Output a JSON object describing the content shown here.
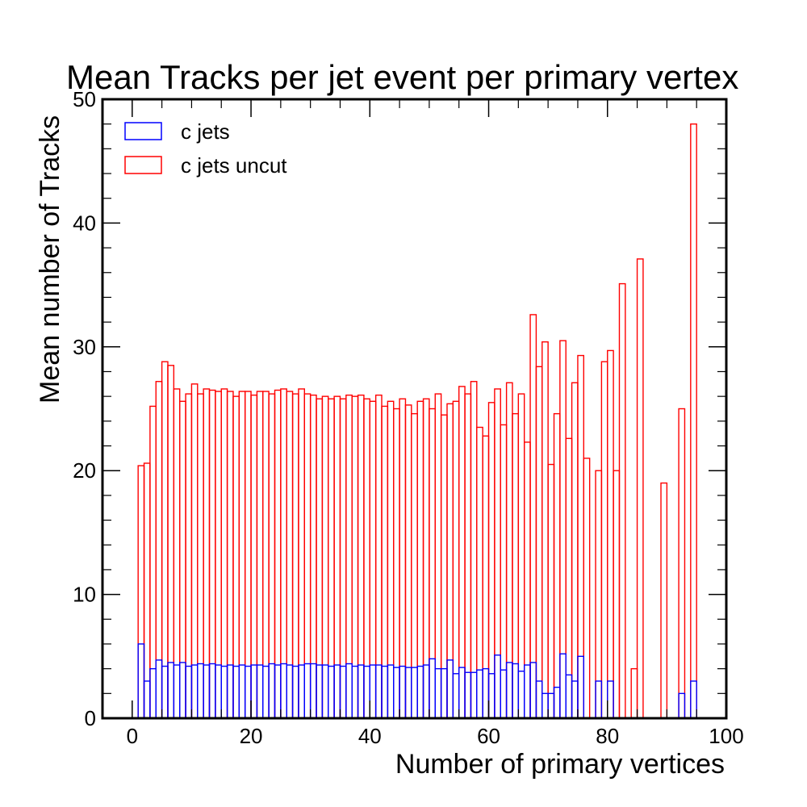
{
  "chart_data": {
    "type": "bar",
    "title": "Mean Tracks per jet event per primary vertex",
    "xlabel": "Number of primary vertices",
    "ylabel": "Mean number of Tracks",
    "xlim": [
      -5,
      100
    ],
    "ylim": [
      0,
      50
    ],
    "x_ticks": [
      0,
      20,
      40,
      60,
      80,
      100
    ],
    "y_ticks": [
      0,
      10,
      20,
      30,
      40,
      50
    ],
    "grid": false,
    "legend_position": "top-left",
    "histtype": "step",
    "bin_width": 1,
    "bin_start": 0,
    "series": [
      {
        "name": "c jets uncut",
        "color": "#ff0000",
        "values": [
          0,
          20.4,
          20.6,
          25.2,
          27.2,
          28.8,
          28.5,
          26.6,
          25.6,
          26.2,
          27.0,
          26.2,
          26.6,
          26.5,
          26.4,
          26.6,
          26.4,
          26.0,
          26.4,
          26.4,
          26.1,
          26.4,
          26.4,
          26.2,
          26.5,
          26.6,
          26.4,
          26.2,
          26.6,
          26.2,
          26.1,
          25.8,
          26.0,
          25.8,
          26.0,
          25.8,
          26.1,
          26.0,
          26.1,
          25.8,
          25.6,
          26.1,
          25.2,
          25.6,
          25.0,
          25.8,
          25.3,
          24.6,
          25.6,
          25.8,
          25.0,
          26.2,
          24.5,
          25.4,
          25.6,
          26.8,
          26.2,
          27.2,
          23.5,
          22.8,
          25.5,
          26.6,
          23.7,
          27.1,
          24.6,
          26.2,
          22.3,
          32.6,
          28.4,
          30.4,
          20.5,
          24.6,
          30.5,
          22.6,
          27.1,
          29.3,
          21.0,
          0,
          20.0,
          28.8,
          29.7,
          20.0,
          35.1,
          0,
          4.0,
          37.1,
          0,
          0,
          0,
          19.0,
          0,
          0,
          25.0,
          0,
          48.0,
          0,
          0,
          0,
          0,
          0
        ]
      },
      {
        "name": "c jets",
        "color": "#0000ff",
        "values": [
          0,
          6.0,
          3.0,
          4.0,
          4.7,
          4.2,
          4.5,
          4.3,
          4.5,
          4.2,
          4.3,
          4.4,
          4.3,
          4.4,
          4.3,
          4.2,
          4.3,
          4.2,
          4.3,
          4.2,
          4.3,
          4.3,
          4.2,
          4.4,
          4.3,
          4.4,
          4.3,
          4.2,
          4.3,
          4.4,
          4.4,
          4.3,
          4.3,
          4.2,
          4.3,
          4.2,
          4.4,
          4.2,
          4.3,
          4.2,
          4.3,
          4.3,
          4.2,
          4.3,
          4.1,
          4.2,
          4.1,
          4.1,
          4.2,
          4.3,
          4.8,
          4.0,
          4.0,
          4.7,
          3.6,
          4.1,
          3.7,
          3.7,
          3.9,
          4.0,
          3.6,
          5.1,
          3.9,
          4.5,
          4.4,
          3.8,
          4.3,
          4.5,
          3.0,
          2.0,
          2.0,
          2.5,
          5.2,
          3.5,
          3.0,
          5.0,
          0,
          0,
          3.0,
          0,
          3.0,
          0,
          0,
          0,
          0,
          0,
          0,
          0,
          0,
          0,
          0,
          0,
          2.0,
          0,
          3.0,
          0,
          0,
          0,
          0,
          0
        ]
      }
    ]
  }
}
